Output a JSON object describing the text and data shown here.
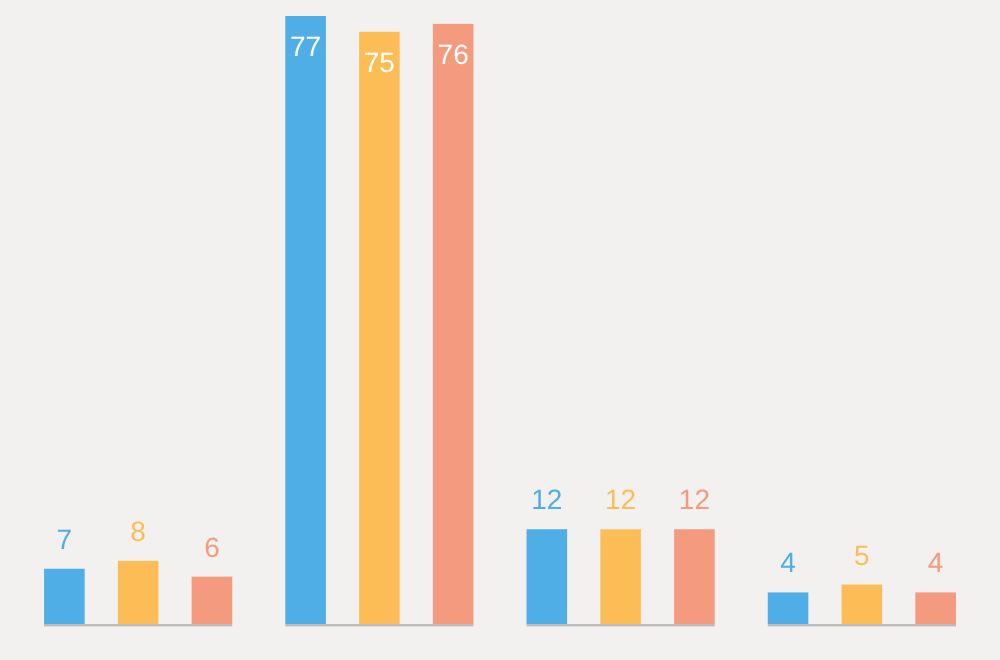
{
  "chart_data": {
    "type": "bar",
    "categories": [
      null,
      null,
      null,
      null
    ],
    "data_labels": true,
    "series": [
      {
        "color": "#4eaee5",
        "values": [
          7,
          77,
          12,
          4
        ]
      },
      {
        "color": "#fcbd56",
        "values": [
          8,
          75,
          12,
          5
        ]
      },
      {
        "color": "#f49a7e",
        "values": [
          6,
          76,
          12,
          4
        ]
      }
    ]
  }
}
